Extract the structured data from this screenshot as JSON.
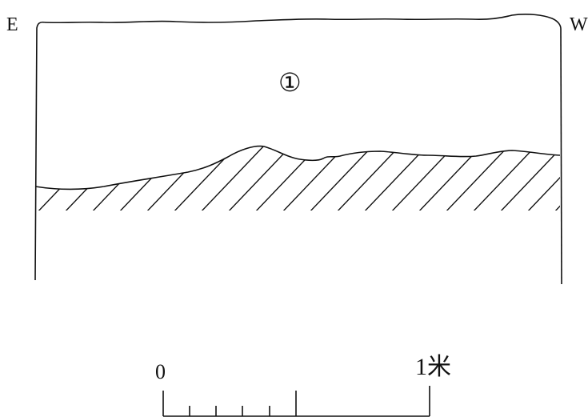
{
  "orientation": {
    "left": "E",
    "right": "W"
  },
  "layer_label": "①",
  "scale_bar": {
    "start_label": "0",
    "end_label": "1米",
    "minor_divisions": 5,
    "major_divisions": 2
  },
  "colors": {
    "ink": "#111111",
    "background": "#ffffff"
  }
}
